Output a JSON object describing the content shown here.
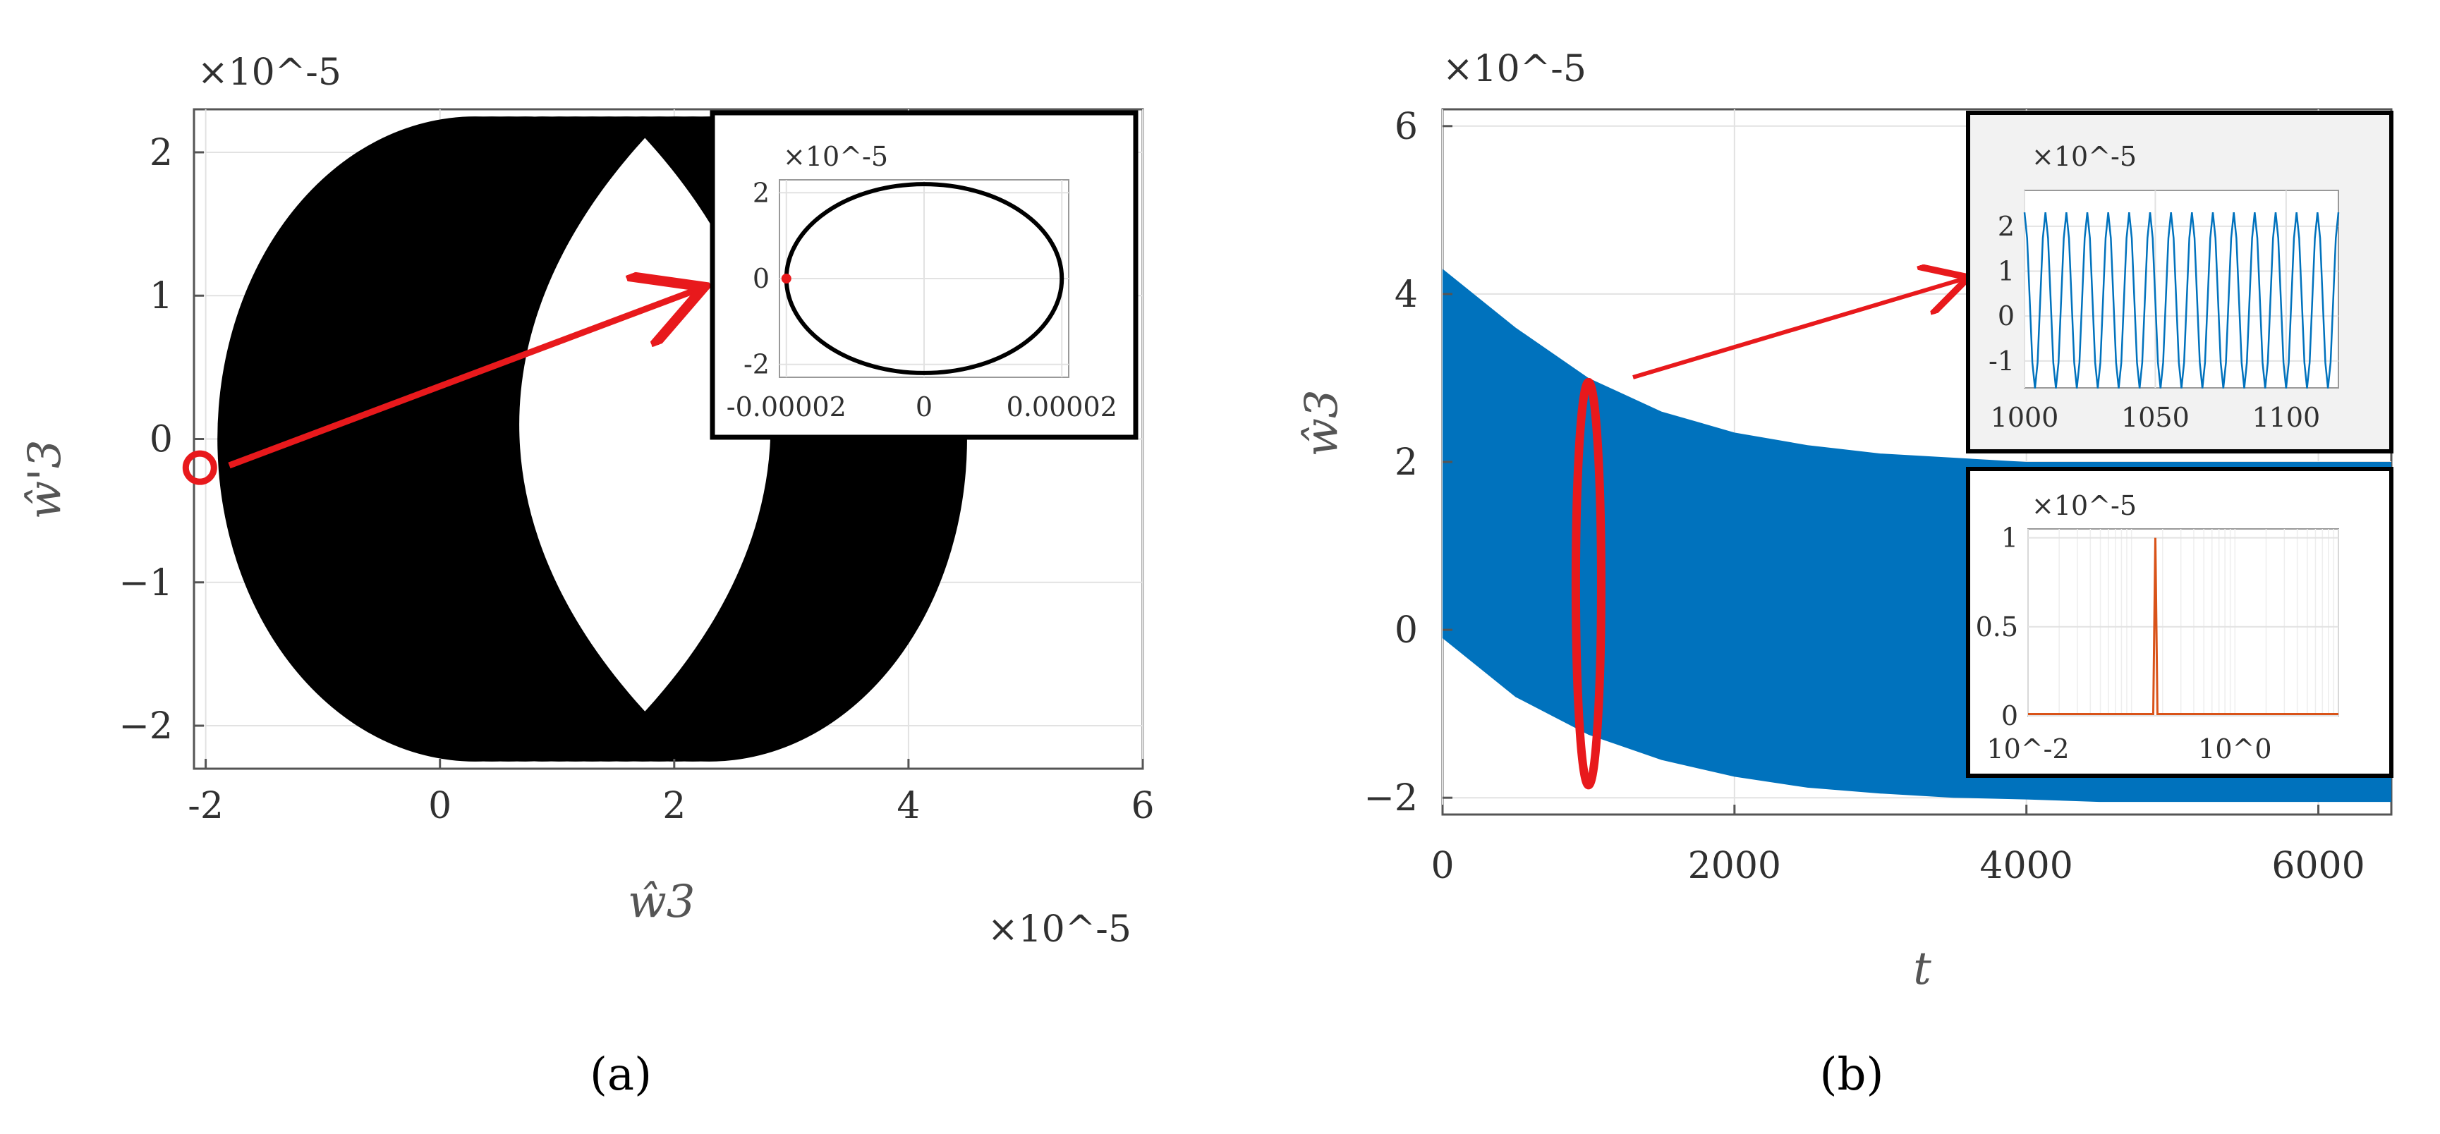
{
  "panel_a": {
    "caption": "(a)",
    "x_exponent": "×10^-5",
    "y_exponent": "×10^-5",
    "xlabel": "ŵ3",
    "ylabel": "ŵ'3",
    "inset": {
      "exponent": "×10^-5",
      "x_ticks": [
        "-0.00002",
        "0",
        "0.00002"
      ],
      "y_ticks": [
        "2",
        "0",
        "-2"
      ]
    }
  },
  "panel_b": {
    "caption": "(b)",
    "y_exponent": "×10^-5",
    "xlabel": "t",
    "ylabel": "ŵ3",
    "inset_time": {
      "exponent": "×10^-5",
      "x_ticks": [
        "1000",
        "1050",
        "1100"
      ],
      "y_ticks": [
        "2",
        "1",
        "0",
        "-1"
      ]
    },
    "inset_spectrum": {
      "exponent": "×10^-5",
      "x_ticks": [
        "10^-2",
        "10^0"
      ],
      "y_ticks": [
        "1",
        "0.5",
        "0"
      ]
    }
  },
  "colors": {
    "phase": "#000000",
    "signal": "#0072bd",
    "highlight": "#e8191c",
    "spectrum": "#d95319",
    "grid": "#e2e2e2",
    "axis": "#555555"
  },
  "chart_data": [
    {
      "type": "scatter",
      "panel": "a",
      "description_kind": "phase-portrait",
      "xlim": [
        -2.1,
        6
      ],
      "ylim": [
        -2.3,
        2.3
      ],
      "x_ticks": [
        -2,
        0,
        2,
        4,
        6
      ],
      "y_ticks": [
        -2,
        -1,
        0,
        1,
        2
      ],
      "x_tick_labels": [
        "-2",
        "0",
        "2",
        "4",
        "6"
      ],
      "y_tick_labels": [
        "−2",
        "−1",
        "0",
        "1",
        "2"
      ],
      "grid": true,
      "band": {
        "center_x_range": [
          0.3,
          2.3
        ],
        "x_semi_axis": 2.2,
        "y_semi_axis": 2.25,
        "hole_x_range": [
          0.5,
          3.0
        ],
        "hole_y_range": [
          -1.9,
          2.1
        ]
      },
      "marker": {
        "x": -2.05,
        "y": -0.2
      },
      "inset": {
        "type": "line",
        "x": [
          -2e-05,
          -1.41e-05,
          0,
          1.41e-05,
          2e-05,
          1.41e-05,
          0,
          -1.41e-05,
          -2e-05
        ],
        "y": [
          0,
          1.55,
          2.2,
          1.55,
          0,
          -1.55,
          -2.2,
          -1.55,
          0
        ],
        "xlim": [
          -2.1e-05,
          2.1e-05
        ],
        "ylim": [
          -2.3,
          2.3
        ],
        "x_ticks": [
          -2e-05,
          0,
          2e-05
        ],
        "y_ticks": [
          2,
          0,
          -2
        ],
        "marker": {
          "x": -2e-05,
          "y": 0
        }
      }
    },
    {
      "type": "area",
      "panel": "b",
      "description_kind": "time-history-envelope",
      "xlim": [
        0,
        6500
      ],
      "ylim": [
        -2.2,
        6.2
      ],
      "x_ticks": [
        0,
        2000,
        4000,
        6000
      ],
      "y_ticks": [
        -2,
        0,
        2,
        4,
        6
      ],
      "x_tick_labels": [
        "0",
        "2000",
        "4000",
        "6000"
      ],
      "y_tick_labels": [
        "−2",
        "0",
        "2",
        "4",
        "6"
      ],
      "grid": true,
      "envelope": {
        "t": [
          0,
          500,
          1000,
          1500,
          2000,
          2500,
          3000,
          3500,
          4000,
          4500,
          5000,
          5500,
          6000,
          6500
        ],
        "upper": [
          4.3,
          3.6,
          3.0,
          2.6,
          2.35,
          2.2,
          2.1,
          2.05,
          2.0,
          2.0,
          2.0,
          2.0,
          2.0,
          2.0
        ],
        "lower": [
          -0.1,
          -0.8,
          -1.25,
          -1.55,
          -1.75,
          -1.88,
          -1.95,
          -2.0,
          -2.02,
          -2.05,
          -2.05,
          -2.05,
          -2.05,
          -2.05
        ]
      },
      "highlight": {
        "t": 1000,
        "y_range": [
          -1.85,
          2.95
        ]
      },
      "inset_time": {
        "type": "line",
        "xlim": [
          1000,
          1120
        ],
        "ylim": [
          -1.6,
          2.8
        ],
        "x_ticks": [
          1000,
          1050,
          1100
        ],
        "y_ticks": [
          2,
          1,
          0,
          -1
        ],
        "amplitude": 2.0,
        "cycles": 15
      },
      "inset_spectrum": {
        "type": "line",
        "x_scale": "log",
        "xlim": [
          0.01,
          10
        ],
        "ylim": [
          0,
          1.05
        ],
        "x_ticks": [
          0.01,
          1
        ],
        "y_ticks": [
          1,
          0.5,
          0
        ],
        "peak": {
          "x": 0.17,
          "y": 1.0
        }
      }
    }
  ]
}
